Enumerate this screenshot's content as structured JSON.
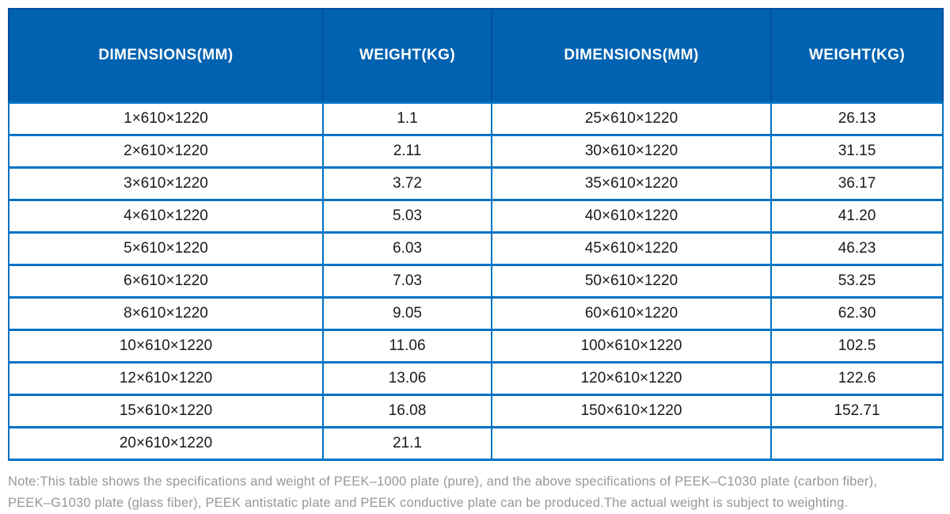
{
  "table": {
    "headers": [
      "DIMENSIONS(MM)",
      "WEIGHT(KG)",
      "DIMENSIONS(MM)",
      "WEIGHT(KG)"
    ],
    "rows": [
      [
        "1×610×1220",
        "1.1",
        "25×610×1220",
        "26.13"
      ],
      [
        "2×610×1220",
        "2.11",
        "30×610×1220",
        "31.15"
      ],
      [
        "3×610×1220",
        "3.72",
        "35×610×1220",
        "36.17"
      ],
      [
        "4×610×1220",
        "5.03",
        "40×610×1220",
        "41.20"
      ],
      [
        "5×610×1220",
        "6.03",
        "45×610×1220",
        "46.23"
      ],
      [
        "6×610×1220",
        "7.03",
        "50×610×1220",
        "53.25"
      ],
      [
        "8×610×1220",
        "9.05",
        "60×610×1220",
        "62.30"
      ],
      [
        "10×610×1220",
        "11.06",
        "100×610×1220",
        "102.5"
      ],
      [
        "12×610×1220",
        "13.06",
        "120×610×1220",
        "122.6"
      ],
      [
        "15×610×1220",
        "16.08",
        "150×610×1220",
        "152.71"
      ],
      [
        "20×610×1220",
        "21.1",
        "",
        ""
      ]
    ]
  },
  "note": {
    "line1": "Note:This table shows the specifications and weight of PEEK–1000 plate (pure), and the above specifications of PEEK–C1030 plate (carbon fiber),",
    "line2": "PEEK–G1030 plate (glass fiber), PEEK antistatic plate and PEEK conductive plate can be produced.The actual weight is subject to weighting."
  },
  "colors": {
    "header_bg": "#0062B0",
    "header_divider": "#02519E",
    "grid_border": "#0073C4",
    "cell_text": "#1a1a1a",
    "note_text": "#979797"
  }
}
